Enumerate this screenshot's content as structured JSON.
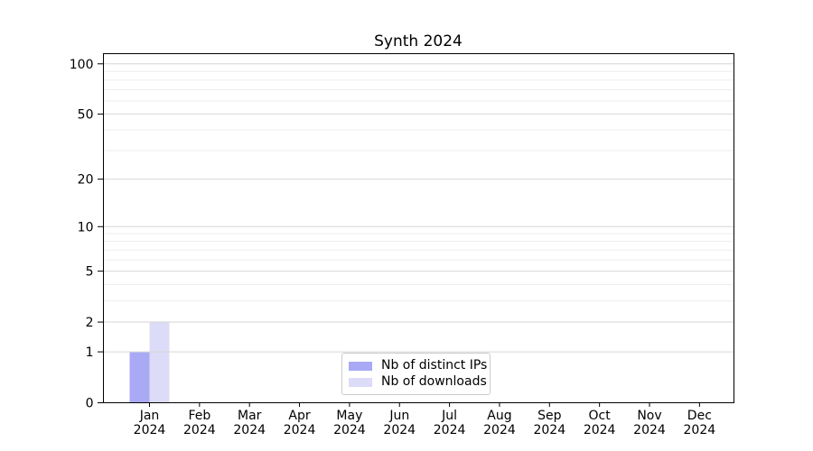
{
  "chart_data": {
    "type": "bar",
    "title": "Synth 2024",
    "categories": [
      "Jan",
      "Feb",
      "Mar",
      "Apr",
      "May",
      "Jun",
      "Jul",
      "Aug",
      "Sep",
      "Oct",
      "Nov",
      "Dec"
    ],
    "x_year_label": "2024",
    "series": [
      {
        "name": "Nb of distinct IPs",
        "color": "#a9a9f6",
        "values": [
          1,
          0,
          0,
          0,
          0,
          0,
          0,
          0,
          0,
          0,
          0,
          0
        ]
      },
      {
        "name": "Nb of downloads",
        "color": "#dcdcf8",
        "values": [
          2,
          0,
          0,
          0,
          0,
          0,
          0,
          0,
          0,
          0,
          0,
          0
        ]
      }
    ],
    "y_scale": "log1p",
    "ylim": [
      0,
      115
    ],
    "y_major_ticks": [
      0,
      1,
      2,
      5,
      10,
      20,
      50,
      100
    ],
    "y_minor_gridlines": [
      3,
      4,
      6,
      7,
      8,
      9,
      30,
      40,
      60,
      70,
      80,
      90
    ],
    "grid": true,
    "legend_position": "lower center",
    "style": {
      "major_grid_color": "#d6d6d6",
      "minor_grid_color": "#ededed",
      "axis_color": "#000000",
      "legend_border_color": "#cccccc",
      "background": "#ffffff"
    }
  }
}
